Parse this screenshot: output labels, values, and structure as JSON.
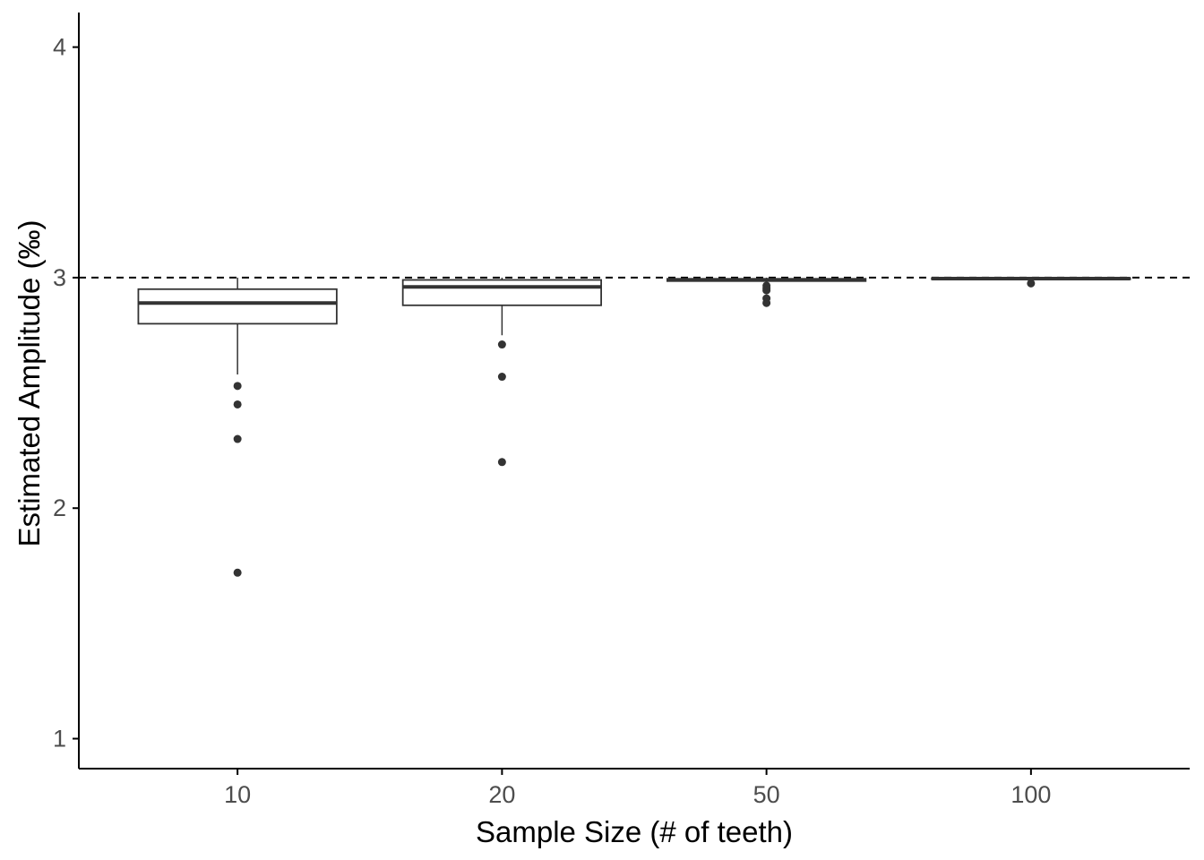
{
  "chart_data": {
    "type": "boxplot",
    "xlabel": "Sample Size (# of teeth)",
    "ylabel": "Estimated Amplitude (‰)",
    "categories": [
      "10",
      "20",
      "50",
      "100"
    ],
    "ylim": [
      0.87,
      4.15
    ],
    "yticks": [
      1,
      2,
      3,
      4
    ],
    "grid": false,
    "reference_line": {
      "y": 3.0,
      "style": "dashed"
    },
    "boxes": [
      {
        "category": "10",
        "whisker_low": 2.58,
        "q1": 2.8,
        "median": 2.89,
        "q3": 2.95,
        "whisker_high": 3.0,
        "outliers": [
          2.53,
          2.45,
          2.3,
          1.72
        ]
      },
      {
        "category": "20",
        "whisker_low": 2.75,
        "q1": 2.88,
        "median": 2.96,
        "q3": 2.99,
        "whisker_high": 3.0,
        "outliers": [
          2.71,
          2.57,
          2.2
        ]
      },
      {
        "category": "50",
        "whisker_low": 2.975,
        "q1": 2.985,
        "median": 2.99,
        "q3": 2.995,
        "whisker_high": 3.0,
        "outliers": [
          2.965,
          2.955,
          2.945,
          2.91,
          2.89
        ]
      },
      {
        "category": "100",
        "whisker_low": 2.99,
        "q1": 2.993,
        "median": 2.996,
        "q3": 2.998,
        "whisker_high": 3.0,
        "outliers": [
          2.975
        ]
      }
    ],
    "colors": {
      "box_stroke": "#333333",
      "box_fill": "#ffffff",
      "point": "#333333",
      "axis": "#000000",
      "tick_text": "#4d4d4d"
    }
  }
}
